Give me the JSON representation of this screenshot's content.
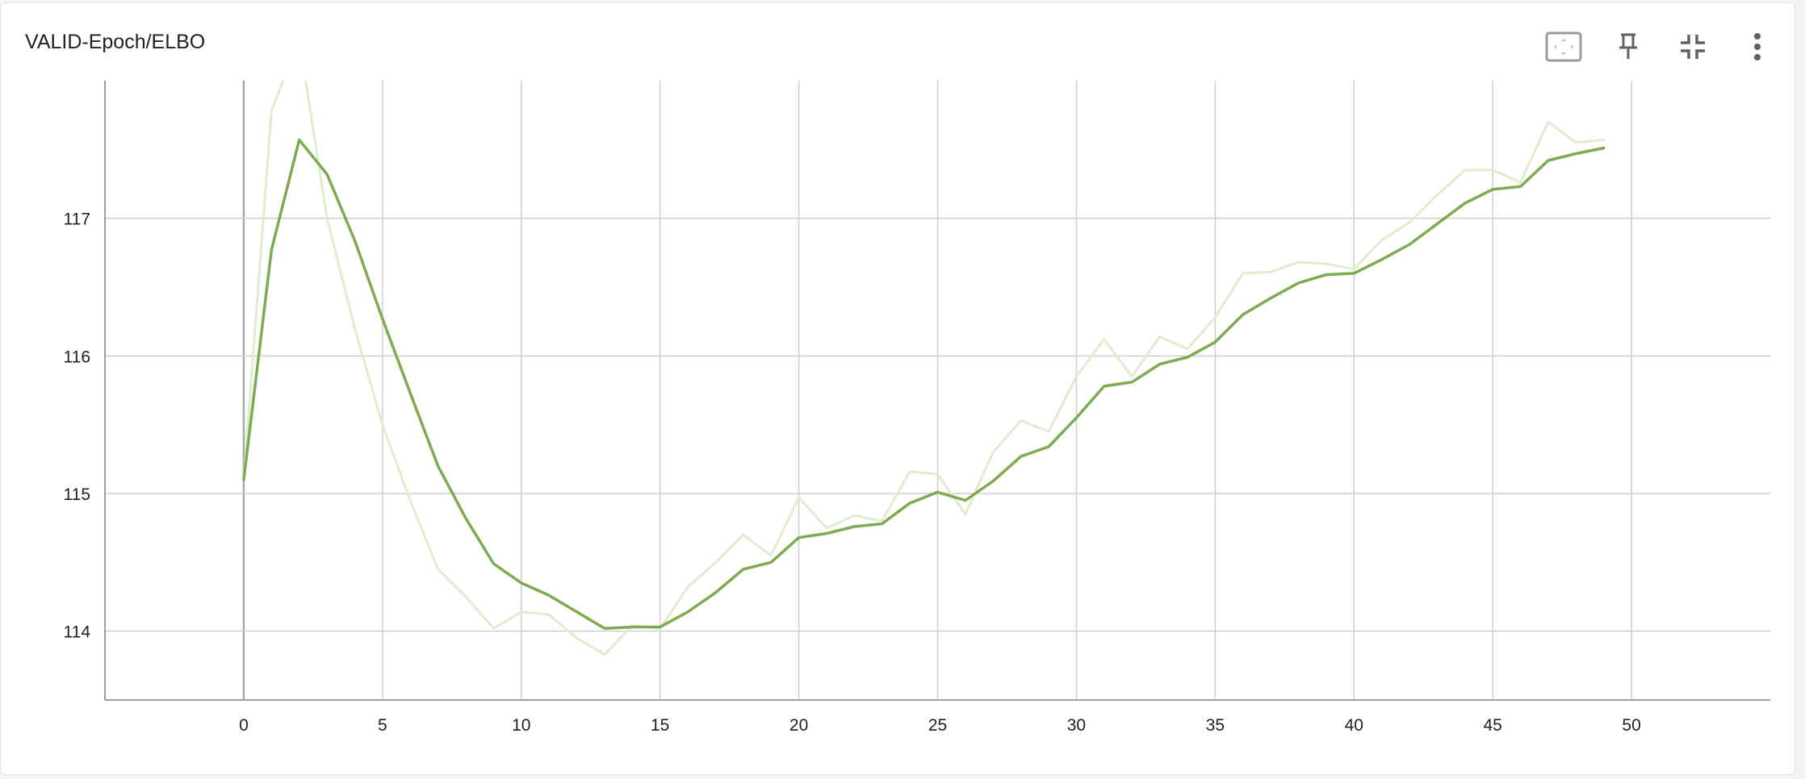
{
  "header": {
    "title": "VALID-Epoch/ELBO"
  },
  "toolbar": {
    "items": [
      {
        "name": "fit-domain-icon",
        "label": ""
      },
      {
        "name": "pin-icon",
        "label": ""
      },
      {
        "name": "collapse-icon",
        "label": ""
      },
      {
        "name": "more-vert-icon",
        "label": ""
      }
    ]
  },
  "colors": {
    "smoothed": "#7cac4f",
    "raw": "#dfeccd",
    "grid": "#cfcfcf",
    "axis": "#9e9e9e"
  },
  "chart_data": {
    "type": "line",
    "title": "VALID-Epoch/ELBO",
    "xlabel": "",
    "ylabel": "",
    "xlim": [
      -5,
      55
    ],
    "ylim": [
      113.5,
      118
    ],
    "x_ticks": [
      0,
      5,
      10,
      15,
      20,
      25,
      30,
      35,
      40,
      45,
      50
    ],
    "y_ticks": [
      114,
      115,
      116,
      117
    ],
    "grid": true,
    "legend": "none",
    "series": [
      {
        "role": "raw",
        "x": [
          0,
          1,
          2,
          3,
          4,
          5,
          6,
          7,
          8,
          9,
          10,
          11,
          12,
          13,
          14,
          15,
          16,
          17,
          18,
          19,
          20,
          21,
          22,
          23,
          24,
          25,
          26,
          27,
          28,
          29,
          30,
          31,
          32,
          33,
          34,
          35,
          36,
          37,
          38,
          39,
          40,
          41,
          42,
          43,
          44,
          45,
          46,
          47,
          48,
          49
        ],
        "values": [
          115.1,
          117.78,
          118.3,
          117.0,
          116.2,
          115.5,
          114.95,
          114.45,
          114.25,
          114.02,
          114.14,
          114.12,
          113.95,
          113.83,
          114.04,
          114.02,
          114.32,
          114.5,
          114.7,
          114.55,
          114.97,
          114.75,
          114.84,
          114.8,
          115.16,
          115.14,
          114.85,
          115.3,
          115.53,
          115.45,
          115.85,
          116.12,
          115.85,
          116.14,
          116.05,
          116.28,
          116.6,
          116.61,
          116.68,
          116.67,
          116.63,
          116.84,
          116.97,
          117.17,
          117.35,
          117.35,
          117.26,
          117.7,
          117.55,
          117.57
        ]
      },
      {
        "role": "smoothed",
        "x": [
          0,
          1,
          2,
          3,
          4,
          5,
          6,
          7,
          8,
          9,
          10,
          11,
          12,
          13,
          14,
          15,
          16,
          17,
          18,
          19,
          20,
          21,
          22,
          23,
          24,
          25,
          26,
          27,
          28,
          29,
          30,
          31,
          32,
          33,
          34,
          35,
          36,
          37,
          38,
          39,
          40,
          41,
          42,
          43,
          44,
          45,
          46,
          47,
          48,
          49
        ],
        "values": [
          115.1,
          116.77,
          117.57,
          117.32,
          116.84,
          116.27,
          115.73,
          115.2,
          114.82,
          114.49,
          114.35,
          114.26,
          114.14,
          114.02,
          114.03,
          114.03,
          114.14,
          114.28,
          114.45,
          114.5,
          114.68,
          114.71,
          114.76,
          114.78,
          114.93,
          115.01,
          114.95,
          115.09,
          115.27,
          115.34,
          115.55,
          115.78,
          115.81,
          115.94,
          115.99,
          116.1,
          116.3,
          116.42,
          116.53,
          116.59,
          116.6,
          116.7,
          116.81,
          116.96,
          117.11,
          117.21,
          117.23,
          117.42,
          117.47,
          117.51
        ]
      }
    ]
  }
}
